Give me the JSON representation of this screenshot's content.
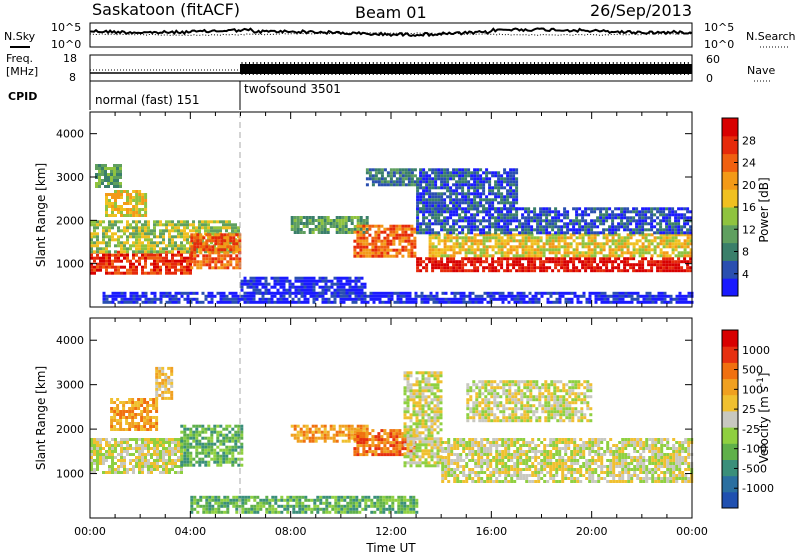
{
  "header": {
    "station": "Saskatoon (fitACF)",
    "beam": "Beam 01",
    "date": "26/Sep/2013"
  },
  "noise_panel": {
    "left_label": "N.Sky",
    "right_label": "N.Search",
    "left_ticks": [
      "10^5",
      "10^0"
    ],
    "right_ticks": [
      "10^5",
      "10^0"
    ]
  },
  "freq_panel": {
    "left_label": "Freq.",
    "left_unit": "[MHz]",
    "right_label": "Nave",
    "left_ticks": [
      "18",
      "8"
    ],
    "right_ticks": [
      "60",
      "0"
    ]
  },
  "cpid": {
    "label": "CPID",
    "modes": [
      {
        "name": "normal (fast) 151",
        "start_hour": 0,
        "end_hour": 6
      },
      {
        "name": "twofsound 3501",
        "start_hour": 6,
        "end_hour": 24
      }
    ]
  },
  "chart_data": [
    {
      "type": "heatmap",
      "quantity": "power",
      "ylabel": "Slant Range [km]",
      "xlim": [
        0,
        24
      ],
      "ylim": [
        0,
        4500
      ],
      "yticks": [
        "1000",
        "2000",
        "3000",
        "4000"
      ],
      "colorbar": {
        "label": "Power [dB]",
        "ticks": [
          "28",
          "24",
          "20",
          "16",
          "12",
          "8",
          "4"
        ],
        "colors": [
          "#1a1aff",
          "#2a4fb0",
          "#3a7f6a",
          "#5f9f5f",
          "#8fc33f",
          "#f0c020",
          "#f39a18",
          "#f06010",
          "#e62a0a",
          "#d80000"
        ]
      },
      "regions": [
        {
          "x0": 0.0,
          "x1": 4.0,
          "y0": 800,
          "y1": 1300,
          "level": 8
        },
        {
          "x0": 0.0,
          "x1": 5.9,
          "y0": 1300,
          "y1": 2000,
          "level": 4
        },
        {
          "x0": 0.6,
          "x1": 2.2,
          "y0": 2100,
          "y1": 2700,
          "level": 5
        },
        {
          "x0": 0.2,
          "x1": 1.2,
          "y0": 2800,
          "y1": 3300,
          "level": 3
        },
        {
          "x0": 4.0,
          "x1": 6.0,
          "y0": 900,
          "y1": 1700,
          "level": 7
        },
        {
          "x0": 8.0,
          "x1": 11.0,
          "y0": 1700,
          "y1": 2100,
          "level": 3
        },
        {
          "x0": 10.5,
          "x1": 13.0,
          "y0": 1200,
          "y1": 1900,
          "level": 7
        },
        {
          "x0": 11.0,
          "x1": 13.0,
          "y0": 2800,
          "y1": 3200,
          "level": 2
        },
        {
          "x0": 13.0,
          "x1": 24.0,
          "y0": 850,
          "y1": 1150,
          "level": 9
        },
        {
          "x0": 13.5,
          "x1": 24.0,
          "y0": 1150,
          "y1": 1700,
          "level": 5
        },
        {
          "x0": 13.0,
          "x1": 24.0,
          "y0": 1700,
          "y1": 2300,
          "level": 1
        },
        {
          "x0": 13.0,
          "x1": 17.0,
          "y0": 2300,
          "y1": 3200,
          "level": 1
        },
        {
          "x0": 0.5,
          "x1": 24.0,
          "y0": 100,
          "y1": 350,
          "level": 0
        },
        {
          "x0": 6.0,
          "x1": 11.0,
          "y0": 300,
          "y1": 700,
          "level": 0
        }
      ]
    },
    {
      "type": "heatmap",
      "quantity": "velocity",
      "ylabel": "Slant Range [km]",
      "xlabel": "Time UT",
      "xlim": [
        0,
        24
      ],
      "ylim": [
        0,
        4500
      ],
      "xticks": [
        "00:00",
        "04:00",
        "08:00",
        "12:00",
        "16:00",
        "20:00",
        "00:00"
      ],
      "yticks": [
        "1000",
        "2000",
        "3000",
        "4000"
      ],
      "colorbar": {
        "label": "Velocity [m s",
        "label_superscript": "-1",
        "label_close": "]",
        "ticks": [
          "1000",
          "500",
          "100",
          "25",
          "-25",
          "-100",
          "-500",
          "-1000"
        ],
        "colors": [
          "#2050b0",
          "#2a6fa0",
          "#3a8f7a",
          "#5fb04a",
          "#8fd040",
          "#c8c8c0",
          "#f0c030",
          "#f0a020",
          "#f07010",
          "#e63010",
          "#d80000"
        ]
      },
      "ground_color": "#c8c8c0",
      "regions": [
        {
          "x0": 0.0,
          "x1": 3.6,
          "y0": 1000,
          "y1": 1800,
          "level": 5
        },
        {
          "x0": 0.8,
          "x1": 2.6,
          "y0": 2000,
          "y1": 2700,
          "level": 7
        },
        {
          "x0": 2.6,
          "x1": 3.3,
          "y0": 2700,
          "y1": 3400,
          "level": 6
        },
        {
          "x0": 3.6,
          "x1": 6.0,
          "y0": 1200,
          "y1": 2100,
          "level": 3
        },
        {
          "x0": 8.0,
          "x1": 11.0,
          "y0": 1700,
          "y1": 2100,
          "level": 7
        },
        {
          "x0": 10.5,
          "x1": 13.0,
          "y0": 1400,
          "y1": 2000,
          "level": 8
        },
        {
          "x0": 12.5,
          "x1": 14.0,
          "y0": 1200,
          "y1": 3300,
          "level": 5
        },
        {
          "x0": 14.0,
          "x1": 24.0,
          "y0": 800,
          "y1": 1800,
          "level": 5
        },
        {
          "x0": 15.0,
          "x1": 20.0,
          "y0": 2200,
          "y1": 3100,
          "level": 5
        },
        {
          "x0": 4.0,
          "x1": 13.0,
          "y0": 100,
          "y1": 500,
          "level": 3
        }
      ]
    }
  ]
}
